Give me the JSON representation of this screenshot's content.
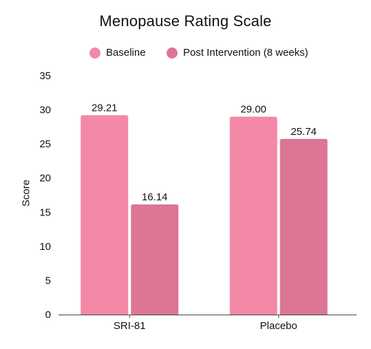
{
  "chart_data": {
    "type": "bar",
    "title": "Menopause Rating Scale",
    "ylabel": "Score",
    "xlabel": "",
    "categories": [
      "SRI-81",
      "Placebo"
    ],
    "series": [
      {
        "name": "Baseline",
        "color": "#f389a7",
        "values": [
          29.21,
          29.0
        ],
        "labels": [
          "29.21",
          "29.00"
        ]
      },
      {
        "name": "Post Intervention (8 weeks)",
        "color": "#dd7594",
        "values": [
          16.14,
          25.74
        ],
        "labels": [
          "16.14",
          "25.74"
        ]
      }
    ],
    "ylim": [
      0,
      35
    ],
    "yticks": [
      0,
      5,
      10,
      15,
      20,
      25,
      30,
      35
    ],
    "grid": false,
    "legend": "top-center"
  }
}
